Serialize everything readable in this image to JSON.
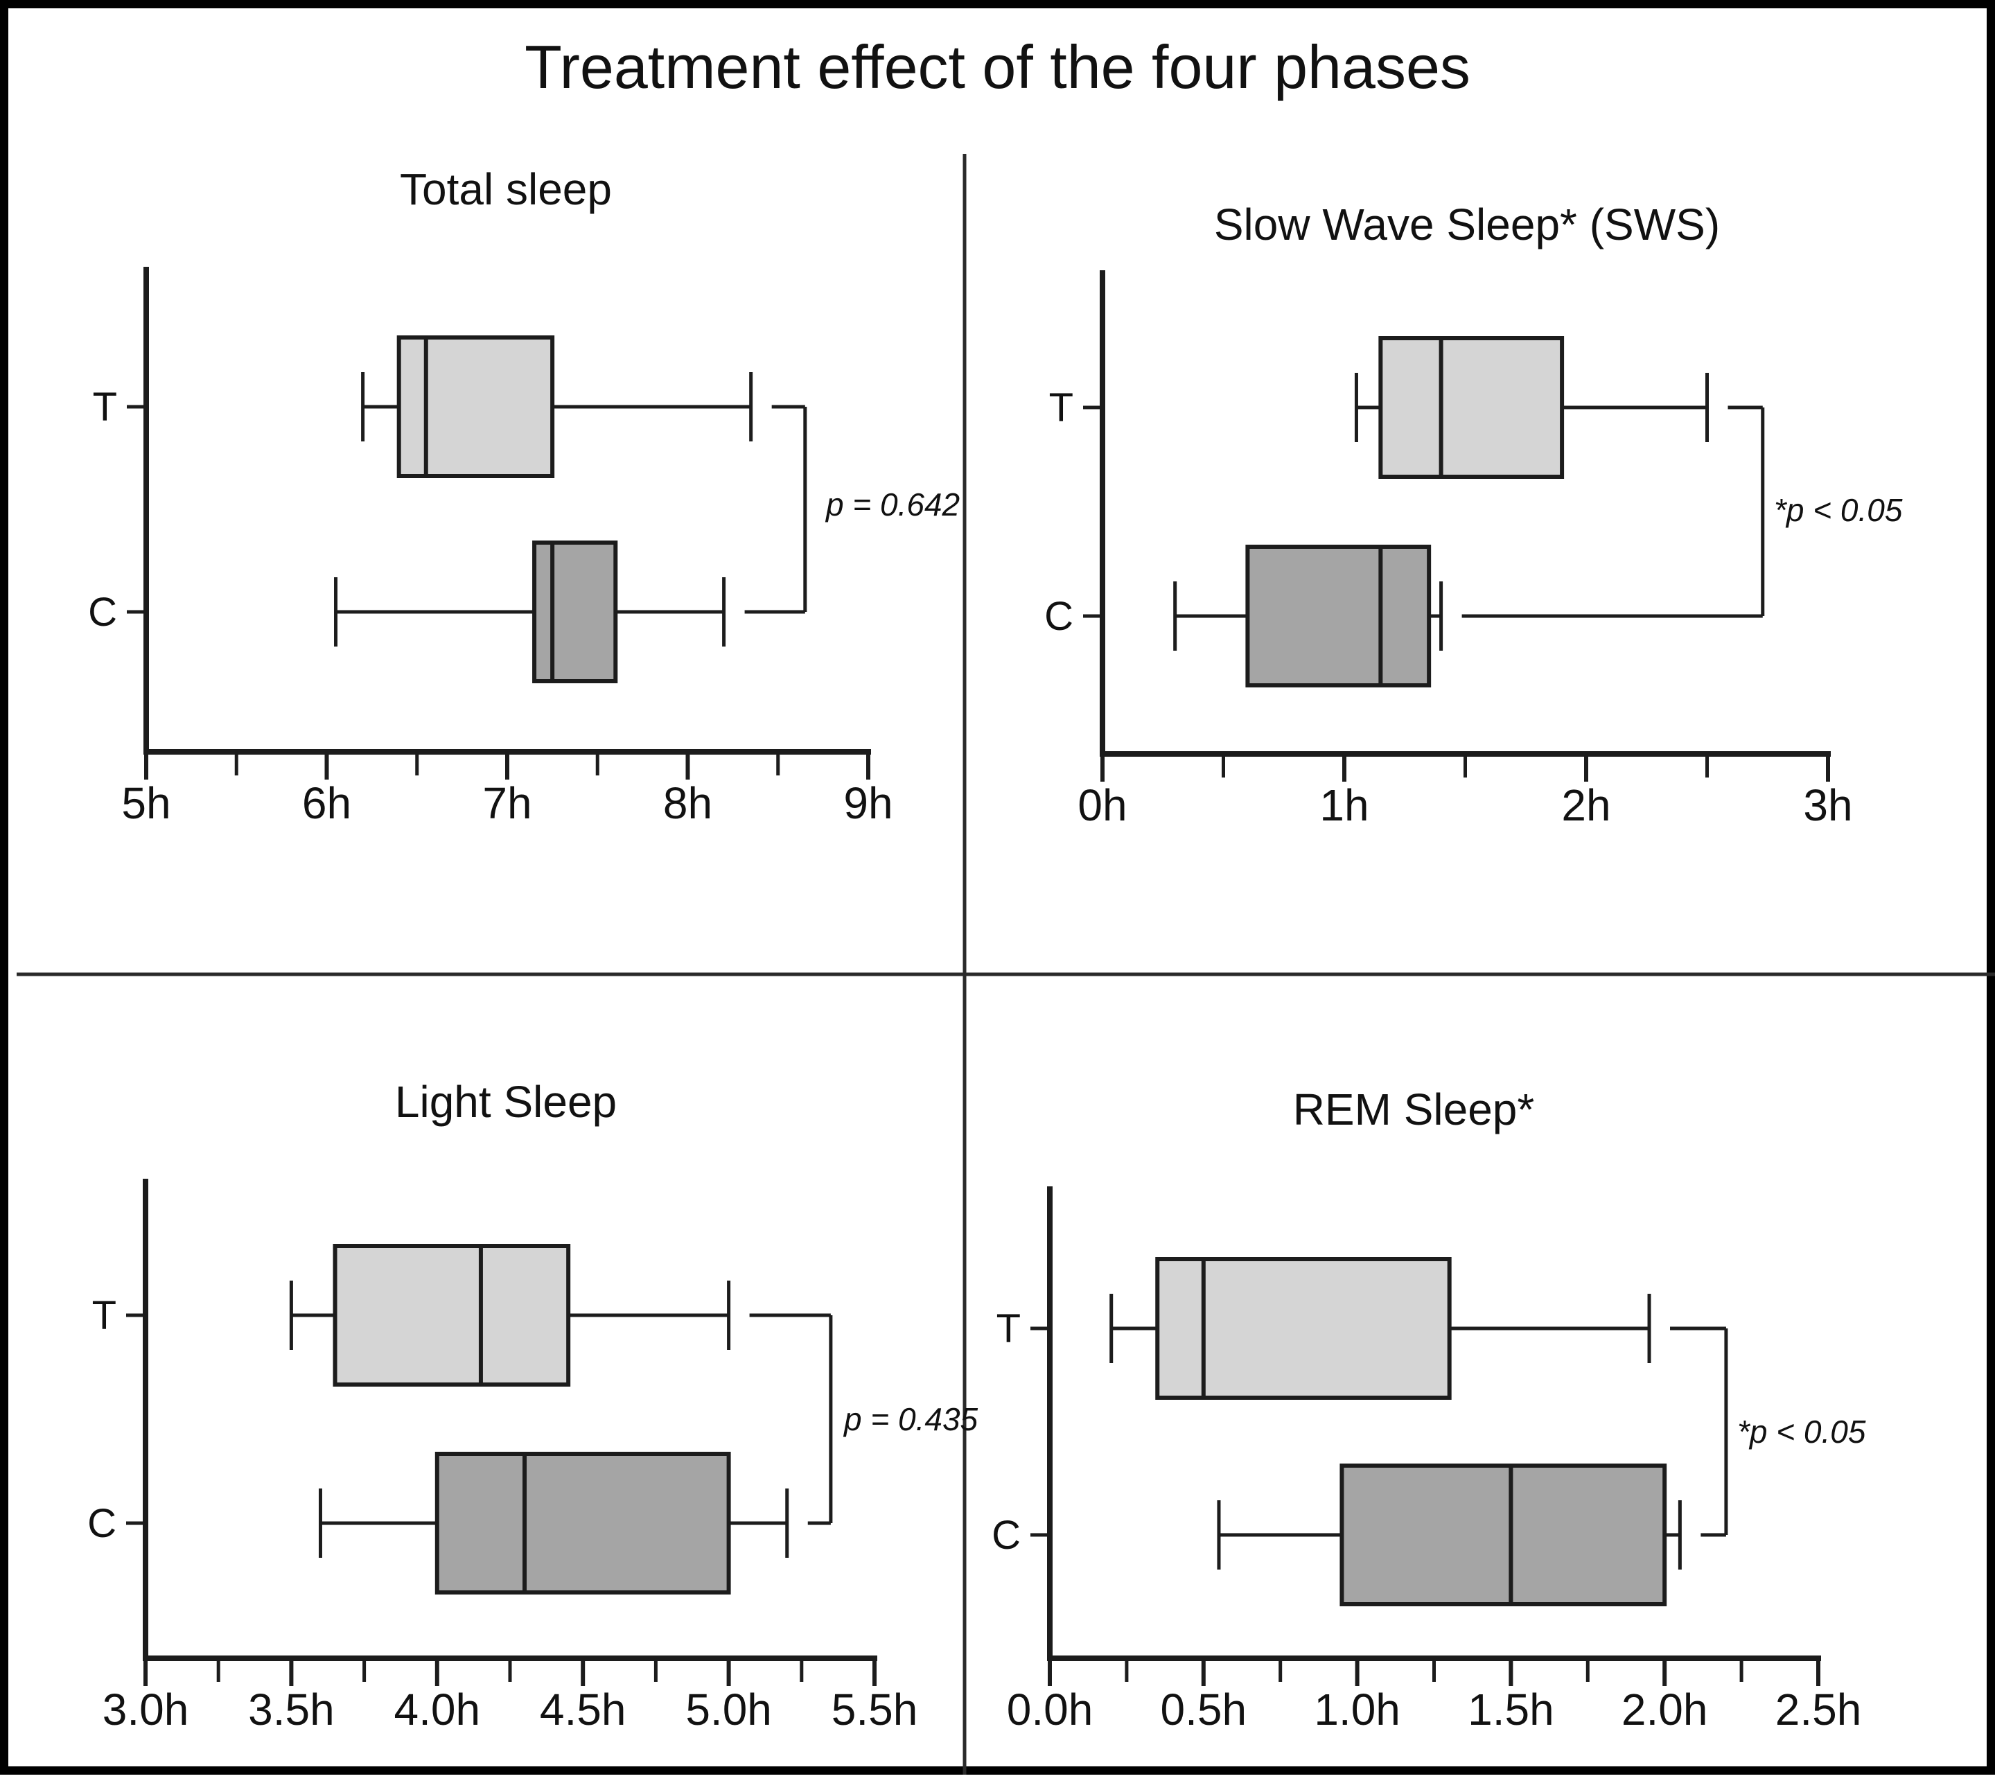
{
  "figure": {
    "title": "Treatment effect of the four phases"
  },
  "colors": {
    "treatment_fill": "#d5d5d5",
    "control_fill": "#a5a5a5",
    "line": "#1c1c1c",
    "divider": "#2a2a2a",
    "text": "#111111"
  },
  "chart_data": [
    {
      "type": "boxplot",
      "orientation": "horizontal",
      "title": "Total sleep",
      "x_unit": "h",
      "xlim": [
        5,
        9
      ],
      "x_ticks": [
        {
          "v": 5,
          "label": "5h"
        },
        {
          "v": 6,
          "label": "6h"
        },
        {
          "v": 7,
          "label": "7h"
        },
        {
          "v": 8,
          "label": "8h"
        },
        {
          "v": 9,
          "label": "9h"
        }
      ],
      "x_minor": [
        5.5,
        6.5,
        7.5,
        8.5
      ],
      "groups": [
        {
          "label": "T",
          "min": 6.2,
          "q1": 6.4,
          "median": 6.55,
          "q3": 7.25,
          "max": 8.35,
          "fill": "#d5d5d5"
        },
        {
          "label": "C",
          "min": 6.05,
          "q1": 7.15,
          "median": 7.25,
          "q3": 7.6,
          "max": 8.2,
          "fill": "#a5a5a5"
        }
      ],
      "significance": {
        "label": "p = 0.642",
        "bracket_x": 8.65
      }
    },
    {
      "type": "boxplot",
      "orientation": "horizontal",
      "title": "Slow Wave Sleep* (SWS)",
      "x_unit": "h",
      "xlim": [
        0,
        3
      ],
      "x_ticks": [
        {
          "v": 0,
          "label": "0h"
        },
        {
          "v": 1,
          "label": "1h"
        },
        {
          "v": 2,
          "label": "2h"
        },
        {
          "v": 3,
          "label": "3h"
        }
      ],
      "x_minor": [
        0.5,
        1.5,
        2.5
      ],
      "groups": [
        {
          "label": "T",
          "min": 1.05,
          "q1": 1.15,
          "median": 1.4,
          "q3": 1.9,
          "max": 2.5,
          "fill": "#d5d5d5"
        },
        {
          "label": "C",
          "min": 0.3,
          "q1": 0.6,
          "median": 1.15,
          "q3": 1.35,
          "max": 1.4,
          "fill": "#a5a5a5"
        }
      ],
      "significance": {
        "label": "*p < 0.05",
        "bracket_x": 2.73
      }
    },
    {
      "type": "boxplot",
      "orientation": "horizontal",
      "title": "Light Sleep",
      "x_unit": "h",
      "xlim": [
        3,
        5.5
      ],
      "x_ticks": [
        {
          "v": 3,
          "label": "3.0h"
        },
        {
          "v": 3.5,
          "label": "3.5h"
        },
        {
          "v": 4,
          "label": "4.0h"
        },
        {
          "v": 4.5,
          "label": "4.5h"
        },
        {
          "v": 5,
          "label": "5.0h"
        },
        {
          "v": 5.5,
          "label": "5.5h"
        }
      ],
      "x_minor": [
        3.25,
        3.75,
        4.25,
        4.75,
        5.25
      ],
      "groups": [
        {
          "label": "T",
          "min": 3.5,
          "q1": 3.65,
          "median": 4.15,
          "q3": 4.45,
          "max": 5.0,
          "fill": "#d5d5d5"
        },
        {
          "label": "C",
          "min": 3.6,
          "q1": 4.0,
          "median": 4.3,
          "q3": 5.0,
          "max": 5.2,
          "fill": "#a5a5a5"
        }
      ],
      "significance": {
        "label": "p = 0.435",
        "bracket_x": 5.35
      }
    },
    {
      "type": "boxplot",
      "orientation": "horizontal",
      "title": "REM Sleep*",
      "x_unit": "h",
      "xlim": [
        0,
        2.5
      ],
      "x_ticks": [
        {
          "v": 0,
          "label": "0.0h"
        },
        {
          "v": 0.5,
          "label": "0.5h"
        },
        {
          "v": 1,
          "label": "1.0h"
        },
        {
          "v": 1.5,
          "label": "1.5h"
        },
        {
          "v": 2,
          "label": "2.0h"
        },
        {
          "v": 2.5,
          "label": "2.5h"
        }
      ],
      "x_minor": [
        0.25,
        0.75,
        1.25,
        1.75,
        2.25
      ],
      "groups": [
        {
          "label": "T",
          "min": 0.2,
          "q1": 0.35,
          "median": 0.5,
          "q3": 1.3,
          "max": 1.95,
          "fill": "#d5d5d5"
        },
        {
          "label": "C",
          "min": 0.55,
          "q1": 0.95,
          "median": 1.5,
          "q3": 2.0,
          "max": 2.05,
          "fill": "#a5a5a5"
        }
      ],
      "significance": {
        "label": "*p < 0.05",
        "bracket_x": 2.2
      }
    }
  ]
}
